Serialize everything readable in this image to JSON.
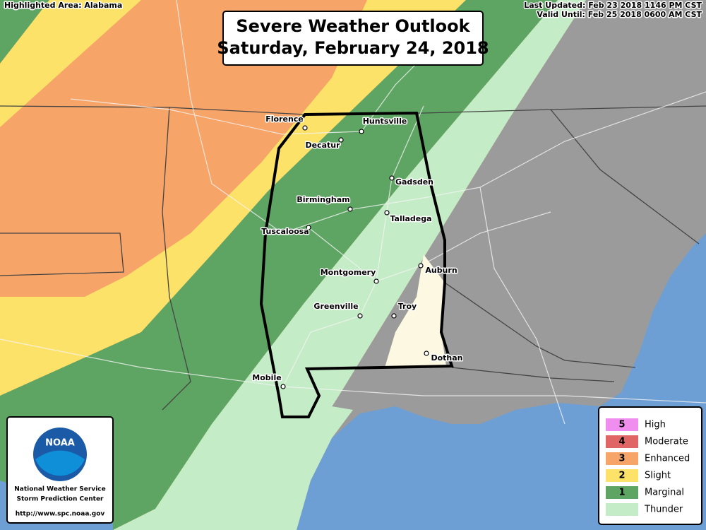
{
  "header": {
    "highlighted_area": "Highlighted Area: Alabama",
    "last_updated": "Last Updated: Feb 23 2018 1146 PM CST",
    "valid_until": "Valid Until: Feb 25 2018 0600 AM CST",
    "title": "Severe Weather Outlook",
    "subtitle": "Saturday, February 24, 2018"
  },
  "cities": [
    {
      "label": "Florence"
    },
    {
      "label": "Huntsville"
    },
    {
      "label": "Decatur"
    },
    {
      "label": "Gadsden"
    },
    {
      "label": "Birmingham"
    },
    {
      "label": "Talladega"
    },
    {
      "label": "Tuscaloosa"
    },
    {
      "label": "Montgomery"
    },
    {
      "label": "Auburn"
    },
    {
      "label": "Greenville"
    },
    {
      "label": "Troy"
    },
    {
      "label": "Dothan"
    },
    {
      "label": "Mobile"
    }
  ],
  "legend": [
    {
      "level": "5",
      "label": "High",
      "color": "#f08ef0"
    },
    {
      "level": "4",
      "label": "Moderate",
      "color": "#e06666"
    },
    {
      "level": "3",
      "label": "Enhanced",
      "color": "#f6a468"
    },
    {
      "level": "2",
      "label": "Slight",
      "color": "#fde26a"
    },
    {
      "level": "1",
      "label": "Marginal",
      "color": "#5ea563"
    },
    {
      "label": "Thunder",
      "color": "#c4ecc6"
    }
  ],
  "logo": {
    "emblem": "NOAA",
    "line1": "National Weather Service",
    "line2": "Storm Prediction Center",
    "url": "http://www.spc.noaa.gov"
  }
}
